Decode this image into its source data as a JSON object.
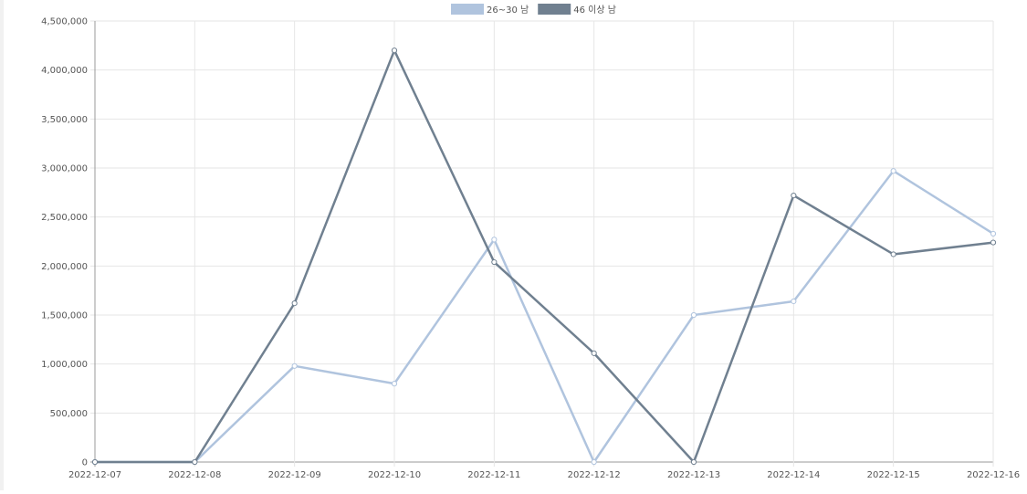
{
  "chart_data": {
    "type": "line",
    "x": [
      "2022-12-07",
      "2022-12-08",
      "2022-12-09",
      "2022-12-10",
      "2022-12-11",
      "2022-12-12",
      "2022-12-13",
      "2022-12-14",
      "2022-12-15",
      "2022-12-16"
    ],
    "ylim": [
      0,
      4500000
    ],
    "yticks": [
      0,
      500000,
      1000000,
      1500000,
      2000000,
      2500000,
      3000000,
      3500000,
      4000000,
      4500000
    ],
    "ytick_labels": [
      "0",
      "500,000",
      "1,000,000",
      "1,500,000",
      "2,000,000",
      "2,500,000",
      "3,000,000",
      "3,500,000",
      "4,000,000",
      "4,500,000"
    ],
    "grid": true,
    "legend_position": "top-center",
    "series": [
      {
        "name": "26~30 남",
        "color": "#b0c4de",
        "values": [
          0,
          0,
          980000,
          800000,
          2270000,
          0,
          1500000,
          1640000,
          2970000,
          2330000
        ]
      },
      {
        "name": "46 이상 남",
        "color": "#708090",
        "values": [
          0,
          0,
          1620000,
          4200000,
          2040000,
          1110000,
          0,
          2720000,
          2120000,
          2240000
        ]
      }
    ]
  }
}
